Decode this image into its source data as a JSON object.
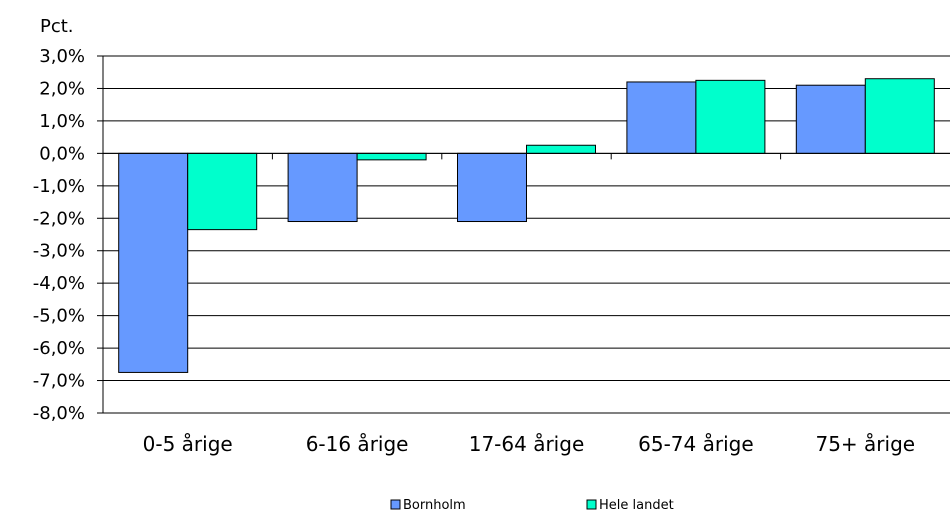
{
  "chart_data": {
    "type": "bar",
    "unit_label": "Pct.",
    "categories": [
      "0-5 årige",
      "6-16 årige",
      "17-64 årige",
      "65-74 årige",
      "75+ årige"
    ],
    "series": [
      {
        "name": "Bornholm",
        "color": "#6699FF",
        "values": [
          -6.75,
          -2.1,
          -2.1,
          2.2,
          2.1
        ]
      },
      {
        "name": "Hele landet",
        "color": "#00FFCC",
        "values": [
          -2.35,
          -0.2,
          0.25,
          2.25,
          2.3
        ]
      }
    ],
    "ylim": [
      -8,
      3
    ],
    "yticks": [
      "3,0%",
      "2,0%",
      "1,0%",
      "0,0%",
      "-1,0%",
      "-2,0%",
      "-3,0%",
      "-4,0%",
      "-5,0%",
      "-6,0%",
      "-7,0%",
      "-8,0%"
    ],
    "grid": true,
    "legend_position": "bottom"
  }
}
